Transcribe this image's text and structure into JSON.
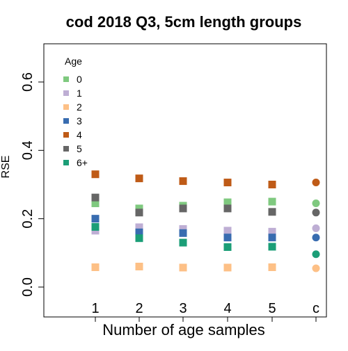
{
  "chart_data": {
    "type": "scatter",
    "title": "cod 2018 Q3, 5cm length groups",
    "xlabel": "Number of age samples",
    "ylabel": "RSE",
    "categories": [
      "1",
      "2",
      "3",
      "4",
      "5",
      "c"
    ],
    "ylim": [
      -0.02,
      0.72
    ],
    "yticks": [
      "0.0",
      "0.2",
      "0.4",
      "0.6"
    ],
    "grid": false,
    "legend_title": "Age",
    "legend_position": "top-left",
    "series": [
      {
        "name": "0",
        "color": "#7fc97f",
        "values": [
          0.245,
          0.23,
          0.238,
          0.248,
          0.25,
          0.245
        ]
      },
      {
        "name": "1",
        "color": "#beaed4",
        "values": [
          0.165,
          0.175,
          0.17,
          0.165,
          0.162,
          0.172
        ]
      },
      {
        "name": "2",
        "color": "#fdc086",
        "values": [
          0.058,
          0.06,
          0.057,
          0.057,
          0.058,
          0.055
        ]
      },
      {
        "name": "3",
        "color": "#386cb0",
        "values": [
          0.2,
          0.16,
          0.158,
          0.145,
          0.145,
          0.145
        ]
      },
      {
        "name": "4",
        "color": "#bf5b17",
        "values": [
          0.33,
          0.318,
          0.31,
          0.306,
          0.3,
          0.306
        ]
      },
      {
        "name": "5",
        "color": "#666666",
        "values": [
          0.262,
          0.218,
          0.23,
          0.23,
          0.22,
          0.218
        ]
      },
      {
        "name": "6+",
        "color": "#1b9e77",
        "values": [
          0.176,
          0.143,
          0.13,
          0.117,
          0.118,
          0.096
        ]
      }
    ],
    "marker_shapes": [
      "square",
      "square",
      "square",
      "square",
      "square",
      "circle"
    ]
  }
}
